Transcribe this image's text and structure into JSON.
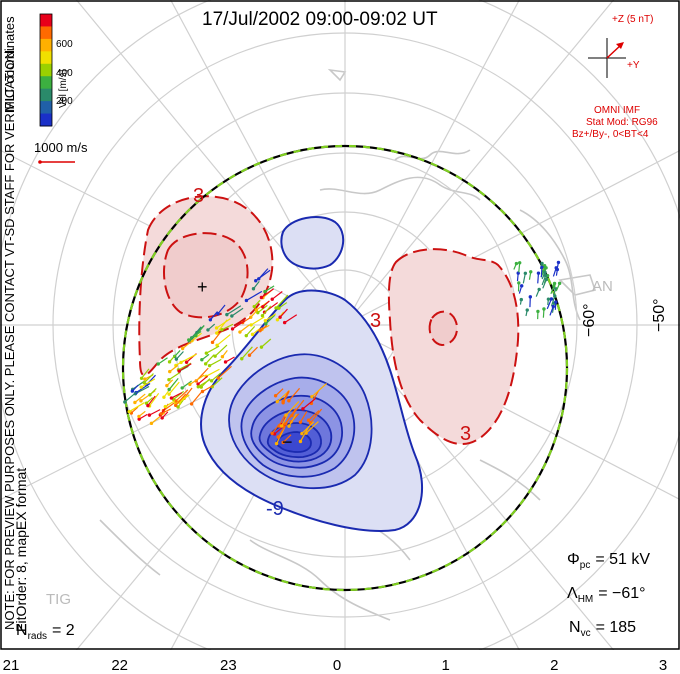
{
  "title": "17/Jul/2002 09:00-09:02 UT",
  "colorbar": {
    "label": "Vel [m/s]",
    "ticks": [
      "600",
      "400",
      "200"
    ],
    "colors": [
      "#e8001a",
      "#ff6a00",
      "#ffb000",
      "#f0e000",
      "#9ad000",
      "#3cb040",
      "#2a8a6a",
      "#2060a8",
      "#1a30c8"
    ]
  },
  "side_text": {
    "coordinates": "MLT coordinates",
    "preview_note": "NOTE: FOR PREVIEW PURPOSES ONLY. PLEASE CONTACT VT-SD STAFF FOR VERIFICATION.",
    "fit_order": "FitOrder: 8, mapEX format"
  },
  "scale_vector": {
    "label": "1000 m/s"
  },
  "imf": {
    "z_label": "+Z (5 nT)",
    "y_label": "+Y",
    "source": "OMNI IMF",
    "stat_mod": "Stat Mod: RG96",
    "condition": "Bz+/By-, 0<BT<4"
  },
  "contour_labels": {
    "pos_top_left": "3",
    "pos_right_a": "3",
    "pos_right_b": "3",
    "neg_bottom": "-9"
  },
  "markers": {
    "max": "+",
    "min": "−"
  },
  "lat_labels": {
    "lat60": "−60°",
    "lat50": "−50°"
  },
  "station_labels": {
    "right": "AN",
    "bottom_left": "TIG"
  },
  "stats": {
    "phi_pc": {
      "sym": "Φ",
      "sub": "pc",
      "value": "= 51 kV"
    },
    "lambda_hm": {
      "sym": "Λ",
      "sub": "HM",
      "value": "= −61°"
    },
    "n_vc": {
      "sym": "N",
      "sub": "vc",
      "value": "= 185"
    },
    "n_rads": {
      "sym": "N",
      "sub": "rads",
      "value": "= 2"
    }
  },
  "mlt_axis": [
    "21",
    "22",
    "23",
    "0",
    "1",
    "2",
    "3"
  ],
  "colors": {
    "positive": "#cc1111",
    "negative": "#1a2ab0",
    "pos_fill": "#f2d2d2",
    "neg_fill": "#c8cbf0",
    "heppner": "#80d020"
  }
}
